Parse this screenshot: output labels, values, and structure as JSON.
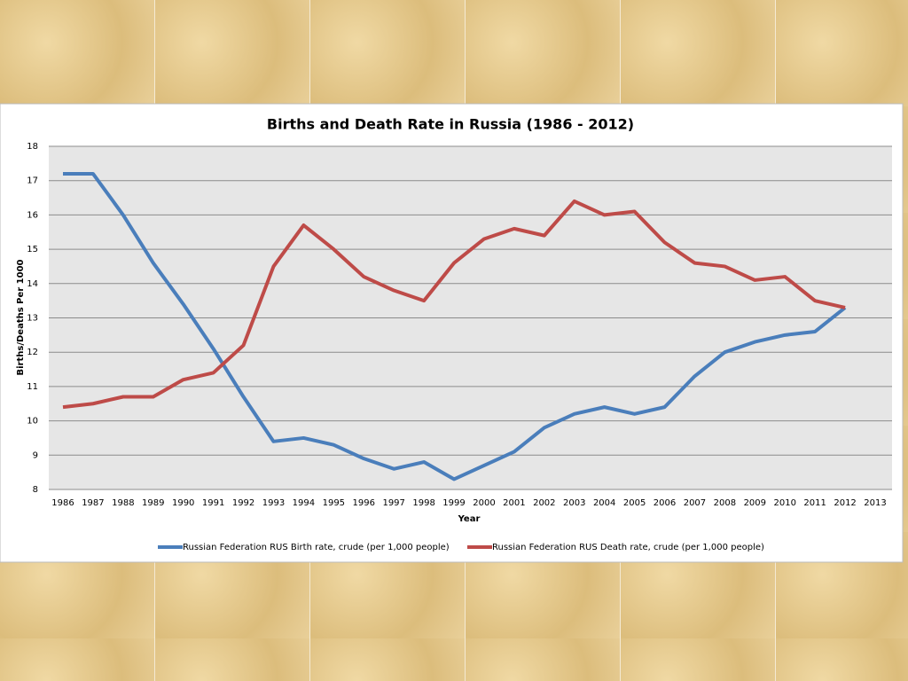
{
  "chart_data": {
    "type": "line",
    "title": "Births and Death Rate in Russia (1986 - 2012)",
    "x_label": "Year",
    "y_label": "Births/Deaths Per 1000",
    "categories": [
      "1986",
      "1987",
      "1988",
      "1989",
      "1990",
      "1991",
      "1992",
      "1993",
      "1994",
      "1995",
      "1996",
      "1997",
      "1998",
      "1999",
      "2000",
      "2001",
      "2002",
      "2003",
      "2004",
      "2005",
      "2006",
      "2007",
      "2008",
      "2009",
      "2010",
      "2011",
      "2012",
      "2013"
    ],
    "series": [
      {
        "name": "Russian Federation RUS Birth rate, crude (per 1,000 people)",
        "color": "#4a7ebb",
        "values": [
          17.2,
          17.2,
          16.0,
          14.6,
          13.4,
          12.1,
          10.7,
          9.4,
          9.5,
          9.3,
          8.9,
          8.6,
          8.8,
          8.3,
          8.7,
          9.1,
          9.8,
          10.2,
          10.4,
          10.2,
          10.4,
          11.3,
          12.0,
          12.3,
          12.5,
          12.6,
          13.3,
          null
        ]
      },
      {
        "name": "Russian Federation RUS Death rate, crude (per 1,000 people)",
        "color": "#be4b48",
        "values": [
          10.4,
          10.5,
          10.7,
          10.7,
          11.2,
          11.4,
          12.2,
          14.5,
          15.7,
          15.0,
          14.2,
          13.8,
          13.5,
          14.6,
          15.3,
          15.6,
          15.4,
          16.4,
          16.0,
          16.1,
          15.2,
          14.6,
          14.5,
          14.1,
          14.2,
          13.5,
          13.3,
          null
        ]
      }
    ],
    "ylim": [
      8,
      18
    ],
    "yticks": [
      8,
      9,
      10,
      11,
      12,
      13,
      14,
      15,
      16,
      17,
      18
    ],
    "grid": true,
    "legend": "bottom"
  }
}
